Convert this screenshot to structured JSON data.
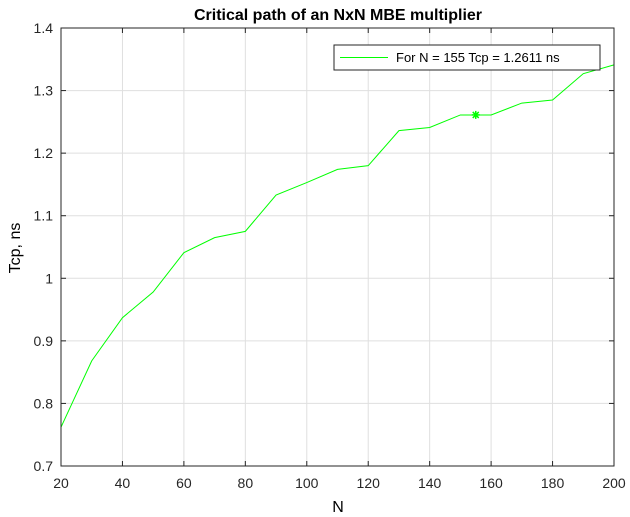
{
  "chart_data": {
    "type": "line",
    "title": "Critical path of an NxN MBE multiplier",
    "xlabel": "N",
    "ylabel": "Tcp, ns",
    "xlim": [
      20,
      200
    ],
    "ylim": [
      0.7,
      1.4
    ],
    "xticks": [
      20,
      40,
      60,
      80,
      100,
      120,
      140,
      160,
      180,
      200
    ],
    "yticks": [
      0.7,
      0.8,
      0.9,
      1,
      1.1,
      1.2,
      1.3,
      1.4
    ],
    "grid": true,
    "legend_position": "top-right",
    "series": [
      {
        "name": "For N = 155 Tcp = 1.2611 ns",
        "color": "#00ff00",
        "x": [
          20,
          30,
          40,
          50,
          60,
          70,
          80,
          90,
          100,
          110,
          120,
          130,
          140,
          150,
          160,
          170,
          180,
          190,
          200
        ],
        "y": [
          0.762,
          0.868,
          0.937,
          0.978,
          1.041,
          1.065,
          1.075,
          1.133,
          1.153,
          1.174,
          1.18,
          1.236,
          1.241,
          1.261,
          1.261,
          1.28,
          1.285,
          1.327,
          1.341
        ]
      }
    ],
    "marker": {
      "x": 155,
      "y": 1.2611,
      "symbol": "asterisk",
      "color": "#00ff00"
    }
  }
}
